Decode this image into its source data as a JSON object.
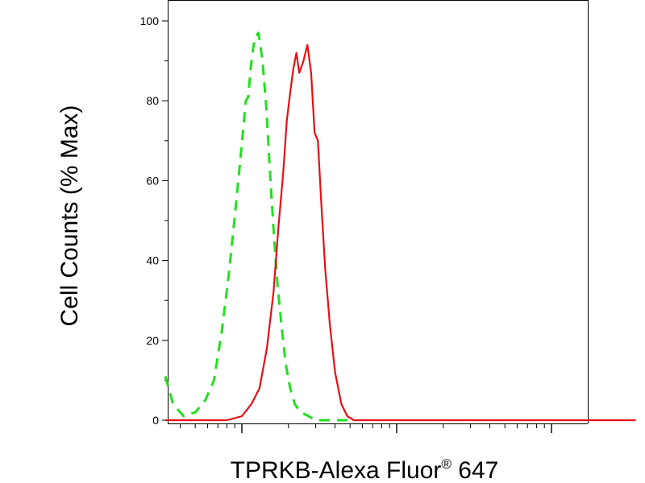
{
  "chart_data": {
    "type": "line",
    "xlabel": "TPRKB-Alexa Fluor",
    "xlabel_superscript": "®",
    "xlabel_suffix": " 647",
    "ylabel": "Cell Counts (% Max)",
    "y_ticks": [
      "0",
      "20",
      "40",
      "60",
      "80",
      "100"
    ],
    "ylim": [
      0,
      100
    ],
    "x_scale": "log",
    "grid": false,
    "legend": "none",
    "series": [
      {
        "style": "dashed",
        "color": "#22e01e",
        "x": [
          0.32,
          0.36,
          0.42,
          0.5,
          0.58,
          0.66,
          0.74,
          0.82,
          0.9,
          0.97,
          1.02,
          1.06,
          1.1,
          1.14,
          1.18,
          1.22,
          1.28,
          1.36,
          1.44,
          1.52,
          1.6,
          1.7,
          1.8,
          1.92,
          2.05,
          2.2,
          2.4,
          2.7,
          3.0,
          3.4,
          3.8,
          4.3,
          5.0
        ],
        "y": [
          11,
          4,
          1,
          2,
          5,
          10,
          22,
          36,
          51,
          64,
          73,
          80,
          81,
          88,
          93,
          96,
          97,
          90,
          78,
          62,
          48,
          34,
          24,
          14,
          8,
          4,
          2,
          1,
          0,
          0,
          0,
          0,
          0
        ]
      },
      {
        "style": "solid",
        "color": "#e60f14",
        "x": [
          0.32,
          0.5,
          0.8,
          1.0,
          1.15,
          1.3,
          1.45,
          1.6,
          1.72,
          1.85,
          1.95,
          2.05,
          2.15,
          2.25,
          2.35,
          2.5,
          2.65,
          2.8,
          2.95,
          3.1,
          3.25,
          3.45,
          3.7,
          4.0,
          4.4,
          4.8,
          5.3,
          6.0,
          7.0,
          9.0,
          12,
          20,
          40,
          80,
          150,
          250,
          350
        ],
        "y": [
          0,
          0,
          0,
          1,
          4,
          8,
          18,
          32,
          48,
          62,
          75,
          82,
          88,
          92,
          87,
          90,
          94,
          87,
          72,
          70,
          55,
          38,
          24,
          12,
          4,
          1,
          0,
          0,
          0,
          0,
          0,
          0,
          0,
          0,
          0,
          0,
          0
        ]
      }
    ]
  }
}
